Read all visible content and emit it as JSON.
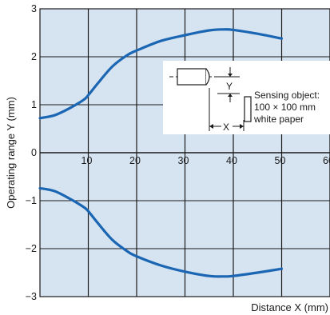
{
  "chart_data": {
    "type": "line",
    "xlabel": "Distance X (mm)",
    "ylabel": "Operating range Y (mm)",
    "xlim": [
      0,
      60
    ],
    "ylim": [
      -3,
      3
    ],
    "x_ticks": [
      10,
      20,
      30,
      40,
      50,
      60
    ],
    "x_tick_labels": [
      "10",
      "20",
      "30",
      "40",
      "50",
      "60"
    ],
    "y_ticks": [
      3,
      2,
      1,
      0,
      -1,
      -2,
      -3
    ],
    "y_tick_labels": [
      "3",
      "2",
      "1",
      "0",
      "−1",
      "−2",
      "−3"
    ],
    "grid": true,
    "background_color": "#d6e4f2",
    "grid_color": "#1a1a1a",
    "curve_color": "#1b66b3",
    "series": [
      {
        "x": [
          0,
          3,
          6,
          9,
          10,
          12,
          15,
          18,
          20,
          25,
          30,
          35,
          38,
          40,
          45,
          50
        ],
        "y": [
          0.72,
          0.78,
          0.92,
          1.1,
          1.2,
          1.45,
          1.8,
          2.03,
          2.13,
          2.33,
          2.45,
          2.55,
          2.57,
          2.56,
          2.48,
          2.38
        ]
      },
      {
        "x": [
          0,
          3,
          6,
          9,
          10,
          12,
          15,
          18,
          20,
          25,
          30,
          35,
          38,
          40,
          45,
          50
        ],
        "y": [
          -0.74,
          -0.8,
          -0.95,
          -1.13,
          -1.22,
          -1.47,
          -1.82,
          -2.05,
          -2.16,
          -2.35,
          -2.48,
          -2.57,
          -2.58,
          -2.57,
          -2.5,
          -2.42
        ]
      }
    ],
    "annotations": {
      "y_marker": "Y",
      "x_marker": "X",
      "sensing_object_lines": [
        "Sensing object:",
        "100 × 100 mm",
        "white paper"
      ]
    }
  }
}
